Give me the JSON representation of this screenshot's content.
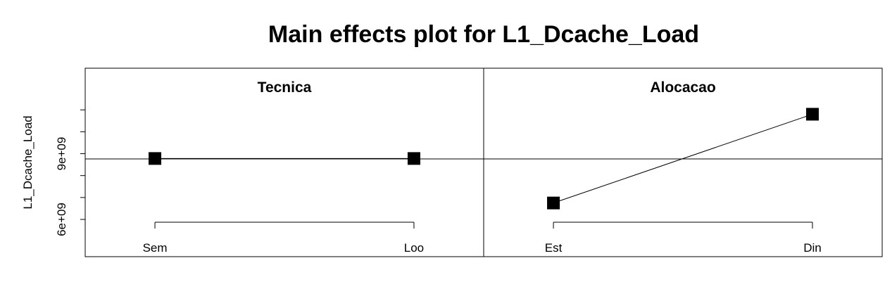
{
  "chart_data": {
    "type": "line",
    "title": "Main effects plot for L1_Dcache_Load",
    "ylabel": "L1_Dcache_Load",
    "ylim": [
      4300000000,
      12900000000
    ],
    "y_ticks": [
      6000000000,
      7000000000,
      8000000000,
      9000000000,
      10000000000,
      11000000000
    ],
    "y_tick_labels": [
      "6e+09",
      "",
      "",
      "9e+09",
      "",
      ""
    ],
    "grand_mean": 8760000000,
    "panels": [
      {
        "name": "Tecnica",
        "categories": [
          "Sem",
          "Loo"
        ],
        "values": [
          8780000000,
          8780000000
        ]
      },
      {
        "name": "Alocacao",
        "categories": [
          "Est",
          "Din"
        ],
        "values": [
          6750000000,
          10800000000
        ]
      }
    ],
    "grid": false,
    "legend": "none"
  }
}
